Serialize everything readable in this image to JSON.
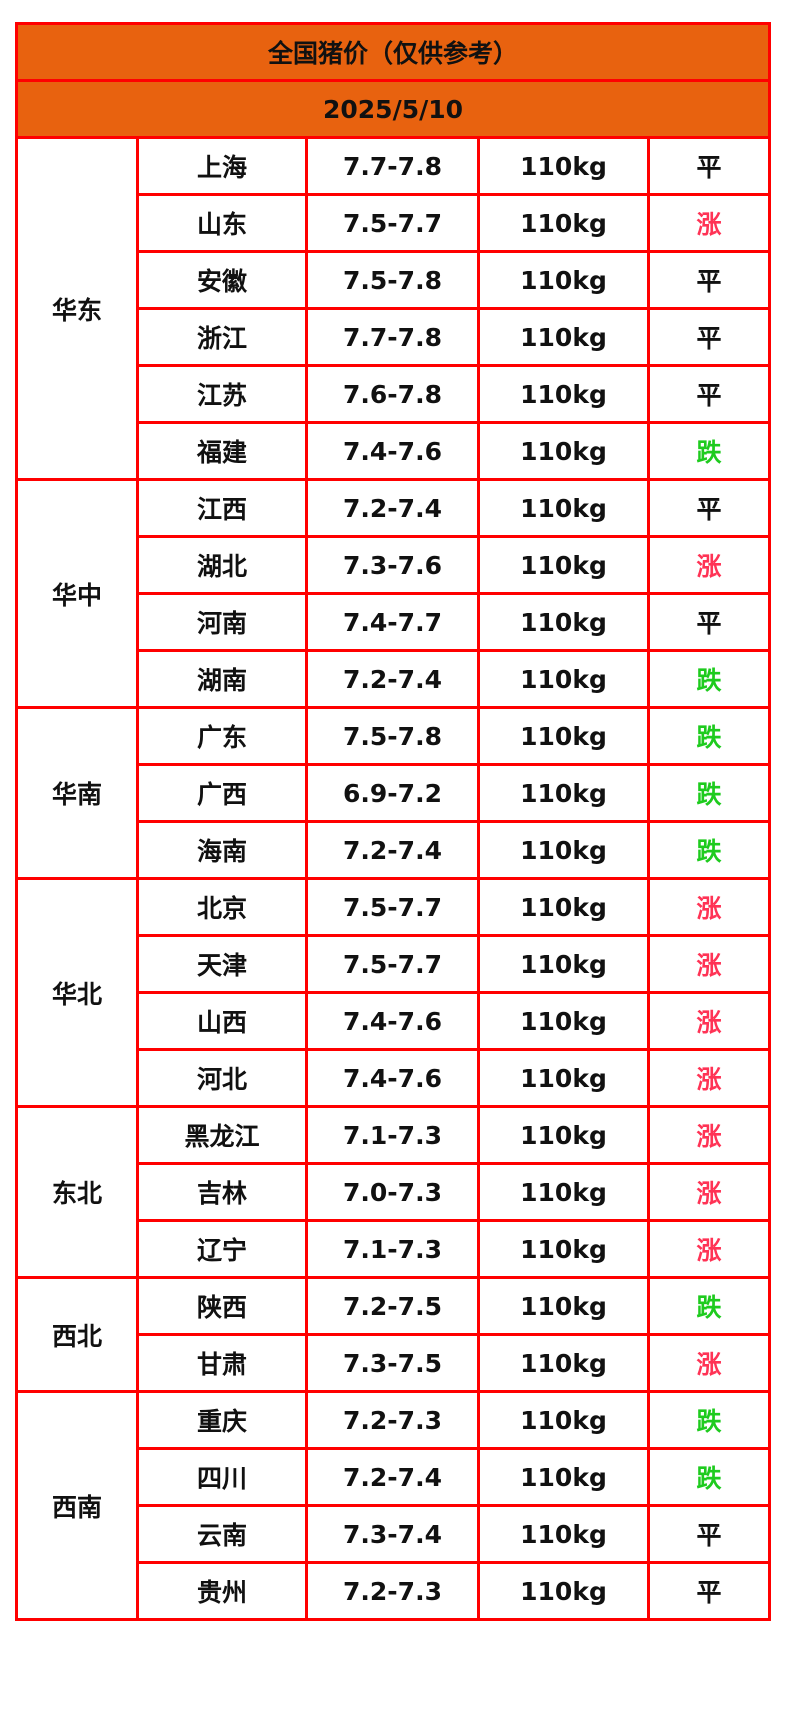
{
  "title": "全国猪价（仅供参考）",
  "date": "2025/5/10",
  "colors": {
    "header_bg": "#e8620f",
    "border": "#ff0000",
    "up": "#ff3355",
    "down": "#1ecb1e"
  },
  "regions": [
    {
      "name": "华东",
      "rows": [
        {
          "province": "上海",
          "price": "7.7-7.8",
          "weight": "110kg",
          "trend": "平"
        },
        {
          "province": "山东",
          "price": "7.5-7.7",
          "weight": "110kg",
          "trend": "涨"
        },
        {
          "province": "安徽",
          "price": "7.5-7.8",
          "weight": "110kg",
          "trend": "平"
        },
        {
          "province": "浙江",
          "price": "7.7-7.8",
          "weight": "110kg",
          "trend": "平"
        },
        {
          "province": "江苏",
          "price": "7.6-7.8",
          "weight": "110kg",
          "trend": "平"
        },
        {
          "province": "福建",
          "price": "7.4-7.6",
          "weight": "110kg",
          "trend": "跌"
        }
      ]
    },
    {
      "name": "华中",
      "rows": [
        {
          "province": "江西",
          "price": "7.2-7.4",
          "weight": "110kg",
          "trend": "平"
        },
        {
          "province": "湖北",
          "price": "7.3-7.6",
          "weight": "110kg",
          "trend": "涨"
        },
        {
          "province": "河南",
          "price": "7.4-7.7",
          "weight": "110kg",
          "trend": "平"
        },
        {
          "province": "湖南",
          "price": "7.2-7.4",
          "weight": "110kg",
          "trend": "跌"
        }
      ]
    },
    {
      "name": "华南",
      "rows": [
        {
          "province": "广东",
          "price": "7.5-7.8",
          "weight": "110kg",
          "trend": "跌"
        },
        {
          "province": "广西",
          "price": "6.9-7.2",
          "weight": "110kg",
          "trend": "跌"
        },
        {
          "province": "海南",
          "price": "7.2-7.4",
          "weight": "110kg",
          "trend": "跌"
        }
      ]
    },
    {
      "name": "华北",
      "rows": [
        {
          "province": "北京",
          "price": "7.5-7.7",
          "weight": "110kg",
          "trend": "涨"
        },
        {
          "province": "天津",
          "price": "7.5-7.7",
          "weight": "110kg",
          "trend": "涨"
        },
        {
          "province": "山西",
          "price": "7.4-7.6",
          "weight": "110kg",
          "trend": "涨"
        },
        {
          "province": "河北",
          "price": "7.4-7.6",
          "weight": "110kg",
          "trend": "涨"
        }
      ]
    },
    {
      "name": "东北",
      "rows": [
        {
          "province": "黑龙江",
          "price": "7.1-7.3",
          "weight": "110kg",
          "trend": "涨"
        },
        {
          "province": "吉林",
          "price": "7.0-7.3",
          "weight": "110kg",
          "trend": "涨"
        },
        {
          "province": "辽宁",
          "price": "7.1-7.3",
          "weight": "110kg",
          "trend": "涨"
        }
      ]
    },
    {
      "name": "西北",
      "rows": [
        {
          "province": "陕西",
          "price": "7.2-7.5",
          "weight": "110kg",
          "trend": "跌"
        },
        {
          "province": "甘肃",
          "price": "7.3-7.5",
          "weight": "110kg",
          "trend": "涨"
        }
      ]
    },
    {
      "name": "西南",
      "rows": [
        {
          "province": "重庆",
          "price": "7.2-7.3",
          "weight": "110kg",
          "trend": "跌"
        },
        {
          "province": "四川",
          "price": "7.2-7.4",
          "weight": "110kg",
          "trend": "跌"
        },
        {
          "province": "云南",
          "price": "7.3-7.4",
          "weight": "110kg",
          "trend": "平"
        },
        {
          "province": "贵州",
          "price": "7.2-7.3",
          "weight": "110kg",
          "trend": "平"
        }
      ]
    }
  ]
}
